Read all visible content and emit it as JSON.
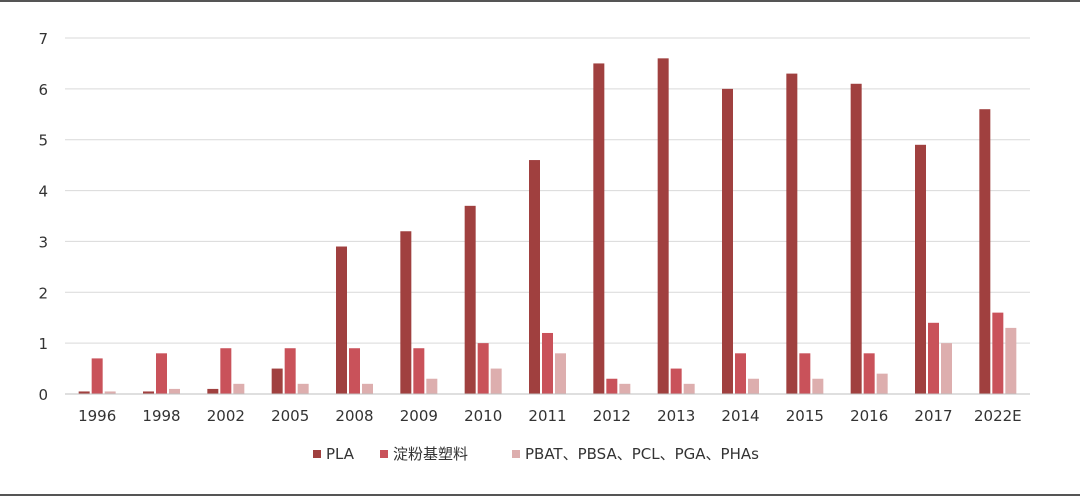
{
  "chart_data": {
    "type": "bar",
    "categories": [
      "1996",
      "1998",
      "2002",
      "2005",
      "2008",
      "2009",
      "2010",
      "2011",
      "2012",
      "2013",
      "2014",
      "2015",
      "2016",
      "2017",
      "2022E"
    ],
    "series": [
      {
        "name": "PLA",
        "color": "#a0403f",
        "values": [
          0.05,
          0.05,
          0.1,
          0.5,
          2.9,
          3.2,
          3.7,
          4.6,
          6.5,
          6.6,
          6.0,
          6.3,
          6.1,
          4.9,
          5.6
        ]
      },
      {
        "name": "淀粉基塑料",
        "color": "#c9525a",
        "values": [
          0.7,
          0.8,
          0.9,
          0.9,
          0.9,
          0.9,
          1.0,
          1.2,
          0.3,
          0.5,
          0.8,
          0.8,
          0.8,
          1.4,
          1.6
        ]
      },
      {
        "name": "PBAT、PBSA、PCL、PGA、PHAs",
        "color": "#ddaeae",
        "values": [
          0.05,
          0.1,
          0.2,
          0.2,
          0.2,
          0.3,
          0.5,
          0.8,
          0.2,
          0.2,
          0.3,
          0.3,
          0.4,
          1.0,
          1.3
        ]
      }
    ],
    "yticks": [
      "0",
      "1",
      "2",
      "3",
      "4",
      "5",
      "6",
      "7"
    ],
    "ylim": [
      0,
      7
    ],
    "grid": true,
    "legend_position": "bottom"
  }
}
